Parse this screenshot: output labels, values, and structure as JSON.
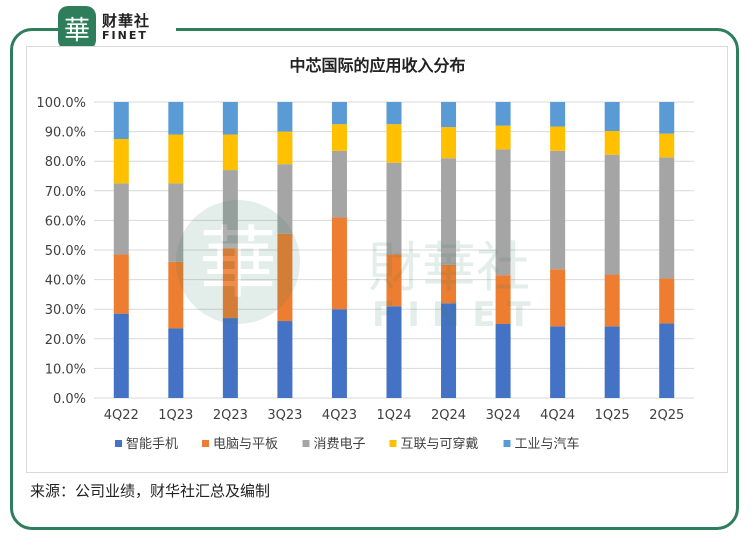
{
  "logo": {
    "badge": "華",
    "name_cn": "财華社",
    "name_en": "FINET"
  },
  "watermark": {
    "name_cn": "財華社",
    "name_en": "FINET",
    "badge": "華"
  },
  "source": "来源：公司业绩，财华社汇总及编制",
  "colors": {
    "frame": "#2e7d5b",
    "smartphone": "#4472c4",
    "pc_tablet": "#ed7d31",
    "consumer": "#a5a5a5",
    "iot": "#ffc000",
    "industrial_auto": "#5b9bd5"
  },
  "chart_data": {
    "type": "bar",
    "stacked": true,
    "title": "中芯国际的应用收入分布",
    "categories": [
      "4Q22",
      "1Q23",
      "2Q23",
      "3Q23",
      "4Q23",
      "1Q24",
      "2Q24",
      "3Q24",
      "4Q24",
      "1Q25",
      "2Q25"
    ],
    "series": [
      {
        "name": "智能手机",
        "color": "#4472c4",
        "values": [
          28.5,
          23.5,
          27.0,
          26.0,
          30.0,
          31.0,
          32.0,
          25.0,
          24.2,
          24.2,
          25.2
        ]
      },
      {
        "name": "电脑与平板",
        "color": "#ed7d31",
        "values": [
          20.0,
          22.5,
          23.5,
          29.5,
          31.0,
          17.5,
          13.0,
          16.5,
          19.3,
          17.5,
          15.2
        ]
      },
      {
        "name": "消费电子",
        "color": "#a5a5a5",
        "values": [
          24.0,
          26.5,
          26.5,
          23.5,
          22.5,
          31.0,
          36.0,
          42.5,
          40.0,
          40.5,
          40.9
        ]
      },
      {
        "name": "互联与可穿戴",
        "color": "#ffc000",
        "values": [
          15.0,
          16.5,
          12.0,
          11.0,
          9.0,
          13.0,
          10.5,
          8.0,
          8.2,
          8.0,
          8.0
        ]
      },
      {
        "name": "工业与汽车",
        "color": "#5b9bd5",
        "values": [
          12.5,
          11.0,
          11.0,
          10.0,
          7.5,
          7.5,
          8.5,
          8.0,
          8.3,
          9.8,
          10.7
        ]
      }
    ],
    "y_ticks": [
      "0.0%",
      "10.0%",
      "20.0%",
      "30.0%",
      "40.0%",
      "50.0%",
      "60.0%",
      "70.0%",
      "80.0%",
      "90.0%",
      "100.0%"
    ],
    "ylim": [
      0,
      100
    ],
    "grid": true,
    "legend_position": "bottom"
  }
}
